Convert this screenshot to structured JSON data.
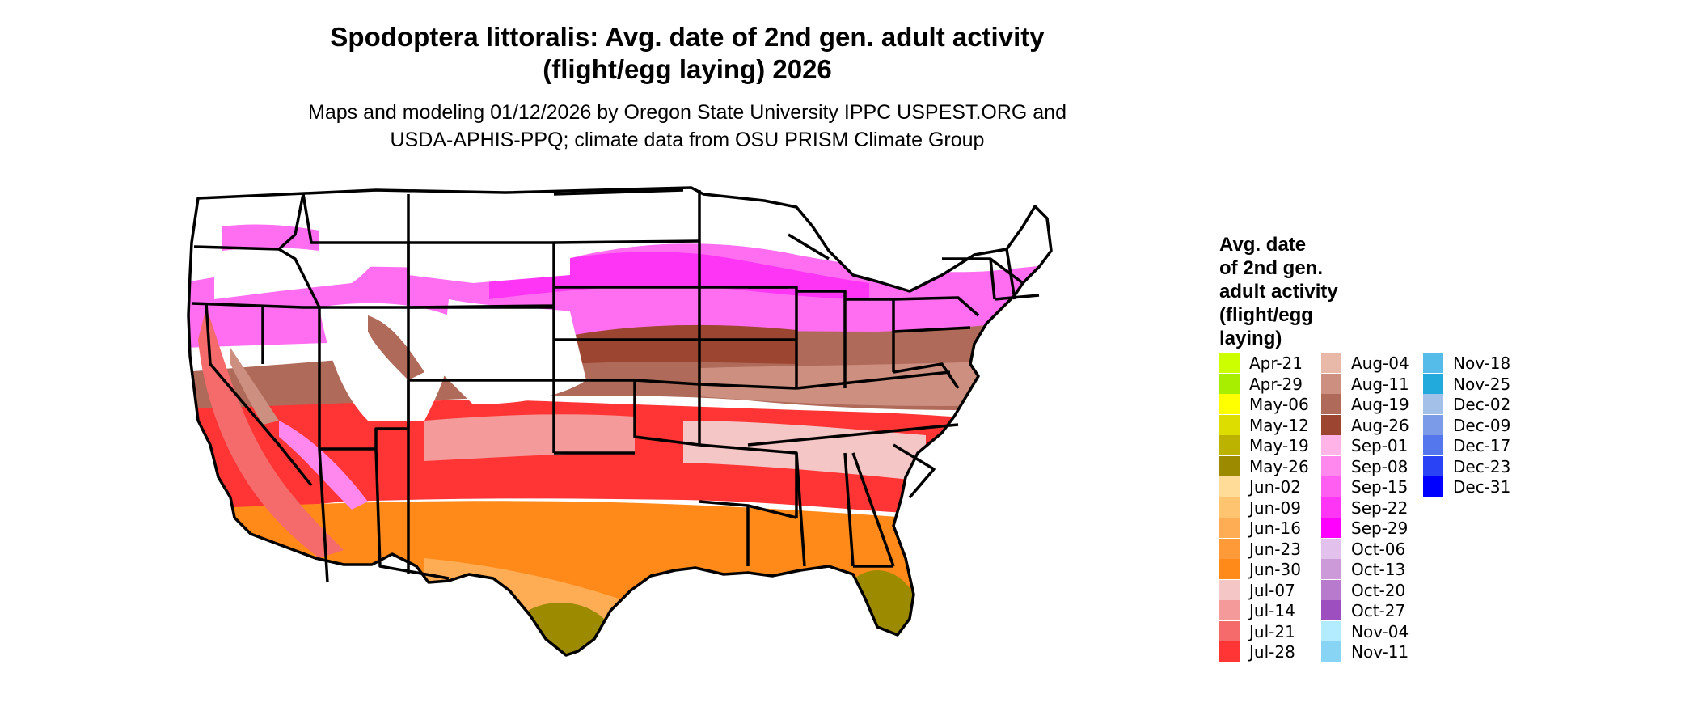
{
  "title_line1": "Spodoptera littoralis: Avg. date of 2nd gen. adult activity",
  "title_line2": "(flight/egg laying) 2026",
  "subtitle_line1": "Maps and modeling 01/12/2026 by Oregon State University IPPC USPEST.ORG and",
  "subtitle_line2": "USDA-APHIS-PPQ; climate data from OSU PRISM Climate Group",
  "legend": {
    "title_lines": [
      "Avg. date",
      "of 2nd gen.",
      "adult activity",
      "(flight/egg",
      "laying)"
    ],
    "items": [
      {
        "label": "Apr-21",
        "color": "#ccff00"
      },
      {
        "label": "Apr-29",
        "color": "#a8ee00"
      },
      {
        "label": "May-06",
        "color": "#ffff00"
      },
      {
        "label": "May-12",
        "color": "#dddd00"
      },
      {
        "label": "May-19",
        "color": "#bbb300"
      },
      {
        "label": "May-26",
        "color": "#9c8a00"
      },
      {
        "label": "Jun-02",
        "color": "#ffdd99"
      },
      {
        "label": "Jun-09",
        "color": "#ffc470"
      },
      {
        "label": "Jun-16",
        "color": "#ffad55"
      },
      {
        "label": "Jun-23",
        "color": "#ff9a38"
      },
      {
        "label": "Jun-30",
        "color": "#ff8a1a"
      },
      {
        "label": "Jul-07",
        "color": "#f5c6c6"
      },
      {
        "label": "Jul-14",
        "color": "#f59a9a"
      },
      {
        "label": "Jul-21",
        "color": "#f56a6a"
      },
      {
        "label": "Jul-28",
        "color": "#ff3535"
      },
      {
        "label": "Aug-04",
        "color": "#e8b8a8"
      },
      {
        "label": "Aug-11",
        "color": "#cc8f80"
      },
      {
        "label": "Aug-19",
        "color": "#b06a5a"
      },
      {
        "label": "Aug-26",
        "color": "#9c4530"
      },
      {
        "label": "Sep-01",
        "color": "#ffb3e6"
      },
      {
        "label": "Sep-08",
        "color": "#ff88ee"
      },
      {
        "label": "Sep-15",
        "color": "#ff5ef0"
      },
      {
        "label": "Sep-22",
        "color": "#ff35f5"
      },
      {
        "label": "Sep-29",
        "color": "#ff00ff"
      },
      {
        "label": "Oct-06",
        "color": "#e2c2ec"
      },
      {
        "label": "Oct-13",
        "color": "#cc9ad9"
      },
      {
        "label": "Oct-20",
        "color": "#b87acc"
      },
      {
        "label": "Oct-27",
        "color": "#9d4fbf"
      },
      {
        "label": "Nov-04",
        "color": "#b3ecff"
      },
      {
        "label": "Nov-11",
        "color": "#88d4f5"
      },
      {
        "label": "Nov-18",
        "color": "#55bbe8"
      },
      {
        "label": "Nov-25",
        "color": "#22aadd"
      },
      {
        "label": "Dec-02",
        "color": "#a3c0e8"
      },
      {
        "label": "Dec-09",
        "color": "#7b9ae8"
      },
      {
        "label": "Dec-17",
        "color": "#5577ee"
      },
      {
        "label": "Dec-23",
        "color": "#2a44f5"
      },
      {
        "label": "Dec-31",
        "color": "#0000ff"
      }
    ]
  }
}
